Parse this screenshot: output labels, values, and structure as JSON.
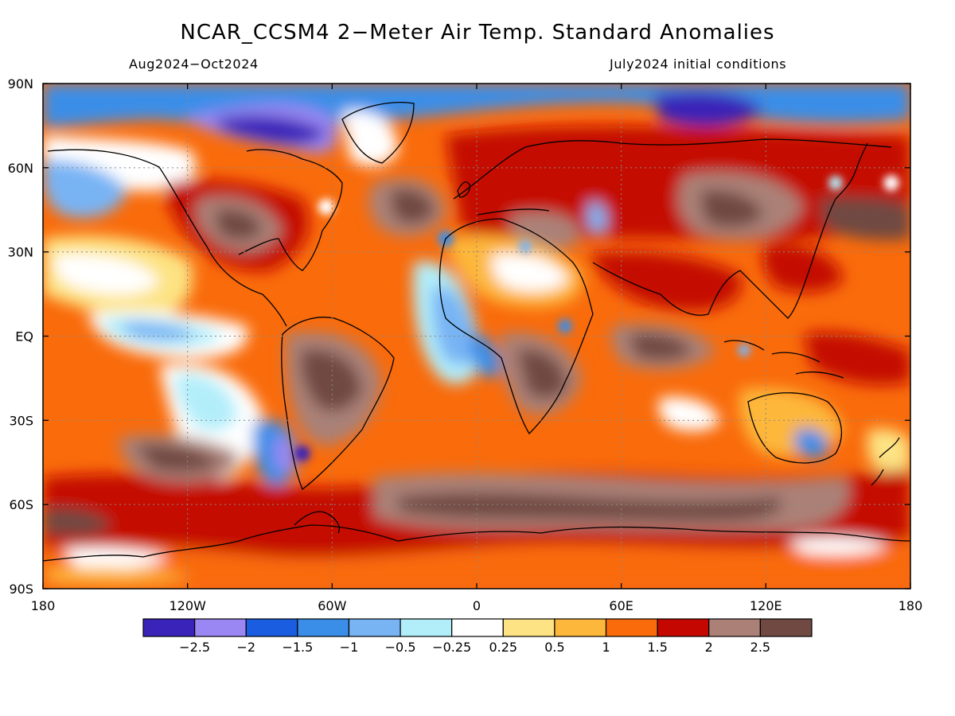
{
  "title": "NCAR_CCSM4 2−Meter Air Temp. Standard Anomalies",
  "period": "Aug2024−Oct2024",
  "init": "July2024 initial conditions",
  "map": {
    "lon_range": [
      -180,
      180
    ],
    "lat_range": [
      -90,
      90
    ],
    "lat_ticks": [
      {
        "value": 90,
        "label": "90N"
      },
      {
        "value": 60,
        "label": "60N"
      },
      {
        "value": 30,
        "label": "30N"
      },
      {
        "value": 0,
        "label": "EQ"
      },
      {
        "value": -30,
        "label": "30S"
      },
      {
        "value": -60,
        "label": "60S"
      },
      {
        "value": -90,
        "label": "90S"
      }
    ],
    "lon_ticks": [
      {
        "value": -180,
        "label": "180"
      },
      {
        "value": -120,
        "label": "120W"
      },
      {
        "value": -60,
        "label": "60W"
      },
      {
        "value": 0,
        "label": "0"
      },
      {
        "value": 60,
        "label": "60E"
      },
      {
        "value": 120,
        "label": "120E"
      },
      {
        "value": 180,
        "label": "180"
      }
    ],
    "colorbar": {
      "colors": [
        "#3a23b8",
        "#9b87f3",
        "#1a5de0",
        "#3a8ee8",
        "#78b4f4",
        "#b2eefa",
        "#ffffff",
        "#fde383",
        "#fdb73a",
        "#f96b0b",
        "#c40700",
        "#ab8177",
        "#704a42"
      ],
      "labels": [
        "−2.5",
        "−2",
        "−1.5",
        "−1",
        "−0.5",
        "−0.25",
        "0.25",
        "0.5",
        "1",
        "1.5",
        "2",
        "2.5"
      ]
    }
  }
}
